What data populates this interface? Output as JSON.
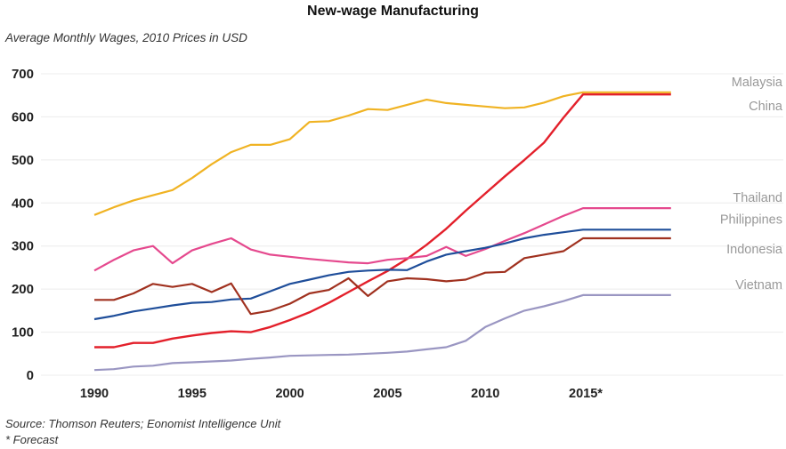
{
  "chart_data": {
    "type": "line",
    "title": "New-wage Manufacturing",
    "subtitle": "Average Monthly Wages, 2010 Prices in USD",
    "xlabel": "",
    "ylabel": "",
    "ylim": [
      0,
      700
    ],
    "xlim": [
      1990,
      2019.5
    ],
    "grid": true,
    "y_ticks": [
      "0",
      "100",
      "200",
      "300",
      "400",
      "500",
      "600",
      "700"
    ],
    "y_tick_values": [
      0,
      100,
      200,
      300,
      400,
      500,
      600,
      700
    ],
    "x_ticks": [
      "1990",
      "1995",
      "2000",
      "2005",
      "2010",
      "2015*"
    ],
    "x_tick_values": [
      1990,
      1995,
      2000,
      2005,
      2010,
      2015
    ],
    "legend": "right-end inline labels",
    "series": [
      {
        "name": "Malaysia",
        "color": "#f0b323",
        "x": [
          1990,
          1991,
          1992,
          1993,
          1994,
          1995,
          1996,
          1997,
          1998,
          1999,
          2000,
          2001,
          2002,
          2003,
          2004,
          2005,
          2006,
          2007,
          2008,
          2009,
          2010,
          2011,
          2012,
          2013,
          2014,
          2015,
          2019.5
        ],
        "values": [
          372,
          390,
          406,
          418,
          430,
          458,
          490,
          518,
          535,
          535,
          548,
          588,
          590,
          603,
          618,
          616,
          628,
          640,
          632,
          628,
          624,
          620,
          622,
          633,
          648,
          657,
          657
        ]
      },
      {
        "name": "China",
        "color": "#e3202b",
        "x": [
          1990,
          1991,
          1992,
          1993,
          1994,
          1995,
          1996,
          1997,
          1998,
          1999,
          2000,
          2001,
          2002,
          2003,
          2004,
          2005,
          2006,
          2007,
          2008,
          2009,
          2010,
          2011,
          2012,
          2013,
          2014,
          2015,
          2019.5
        ],
        "values": [
          65,
          65,
          75,
          75,
          85,
          92,
          98,
          102,
          100,
          112,
          128,
          146,
          168,
          193,
          218,
          242,
          270,
          303,
          340,
          382,
          422,
          462,
          500,
          540,
          598,
          652,
          652
        ]
      },
      {
        "name": "Thailand",
        "color": "#e5498e",
        "x": [
          1990,
          1991,
          1992,
          1993,
          1994,
          1995,
          1996,
          1997,
          1998,
          1999,
          2000,
          2001,
          2002,
          2003,
          2004,
          2005,
          2006,
          2007,
          2008,
          2009,
          2010,
          2011,
          2012,
          2013,
          2014,
          2015,
          2019.5
        ],
        "values": [
          243,
          268,
          290,
          300,
          260,
          290,
          305,
          318,
          292,
          280,
          275,
          270,
          266,
          262,
          260,
          268,
          272,
          277,
          298,
          277,
          293,
          312,
          330,
          350,
          370,
          388,
          388
        ]
      },
      {
        "name": "Philippines",
        "color": "#1f4e9a",
        "x": [
          1990,
          1991,
          1992,
          1993,
          1994,
          1995,
          1996,
          1997,
          1998,
          1999,
          2000,
          2001,
          2002,
          2003,
          2004,
          2005,
          2006,
          2007,
          2008,
          2009,
          2010,
          2011,
          2012,
          2013,
          2014,
          2015,
          2019.5
        ],
        "values": [
          130,
          138,
          148,
          155,
          162,
          168,
          170,
          176,
          178,
          195,
          212,
          222,
          232,
          240,
          243,
          245,
          244,
          264,
          280,
          288,
          296,
          306,
          318,
          326,
          332,
          338,
          338
        ]
      },
      {
        "name": "Indonesia",
        "color": "#a0311f",
        "x": [
          1990,
          1991,
          1992,
          1993,
          1994,
          1995,
          1996,
          1997,
          1998,
          1999,
          2000,
          2001,
          2002,
          2003,
          2004,
          2005,
          2006,
          2007,
          2008,
          2009,
          2010,
          2011,
          2012,
          2013,
          2014,
          2015,
          2019.5
        ],
        "values": [
          175,
          175,
          190,
          212,
          205,
          212,
          193,
          213,
          142,
          150,
          166,
          190,
          198,
          225,
          184,
          218,
          225,
          223,
          218,
          222,
          238,
          240,
          272,
          280,
          288,
          318,
          318
        ]
      },
      {
        "name": "Vietnam",
        "color": "#9a96c2",
        "x": [
          1990,
          1991,
          1992,
          1993,
          1994,
          1995,
          1996,
          1997,
          1998,
          1999,
          2000,
          2001,
          2002,
          2003,
          2004,
          2005,
          2006,
          2007,
          2008,
          2009,
          2010,
          2011,
          2012,
          2013,
          2014,
          2015,
          2019.5
        ],
        "values": [
          12,
          14,
          20,
          22,
          28,
          30,
          32,
          34,
          38,
          41,
          45,
          46,
          47,
          48,
          50,
          52,
          55,
          60,
          65,
          80,
          112,
          132,
          150,
          160,
          172,
          186,
          186
        ]
      }
    ],
    "annotations": {
      "source": "Source: Thomson Reuters; Eonomist Intelligence Unit",
      "footnote": "* Forecast"
    }
  }
}
